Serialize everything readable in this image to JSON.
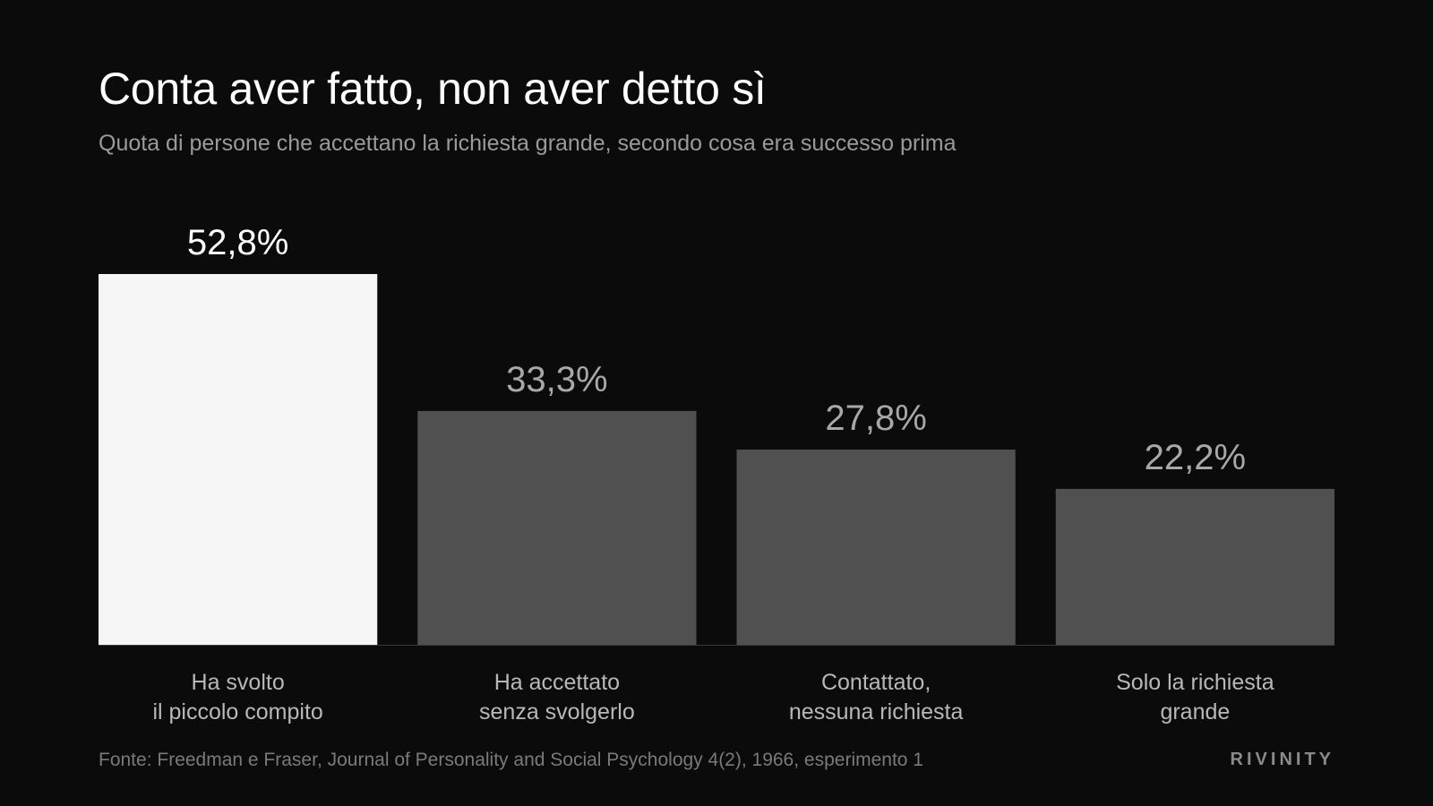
{
  "header": {
    "title": "Conta aver fatto, non aver detto sì",
    "subtitle": "Quota di persone che accettano la richiesta grande, secondo cosa era successo prima"
  },
  "chart_data": {
    "type": "bar",
    "categories": [
      [
        "Ha svolto",
        "il piccolo compito"
      ],
      [
        "Ha accettato",
        "senza svolgerlo"
      ],
      [
        "Contattato,",
        "nessuna richiesta"
      ],
      [
        "Solo la richiesta",
        "grande"
      ]
    ],
    "values": [
      52.8,
      33.3,
      27.8,
      22.2
    ],
    "value_labels": [
      "52,8%",
      "33,3%",
      "27,8%",
      "22,2%"
    ],
    "highlight_index": 0,
    "grid": false,
    "legend": "none",
    "colors": {
      "highlight_bar": "#f5f5f5",
      "bar": "#505050",
      "highlight_label": "#ffffff",
      "label": "#a8a8a8",
      "category_label": "#b8b8b8",
      "baseline": "#3a3a3a"
    }
  },
  "footer": {
    "source": "Fonte: Freedman e Fraser, Journal of Personality and Social Psychology 4(2), 1966, esperimento 1",
    "brand": "RIVINITY"
  }
}
